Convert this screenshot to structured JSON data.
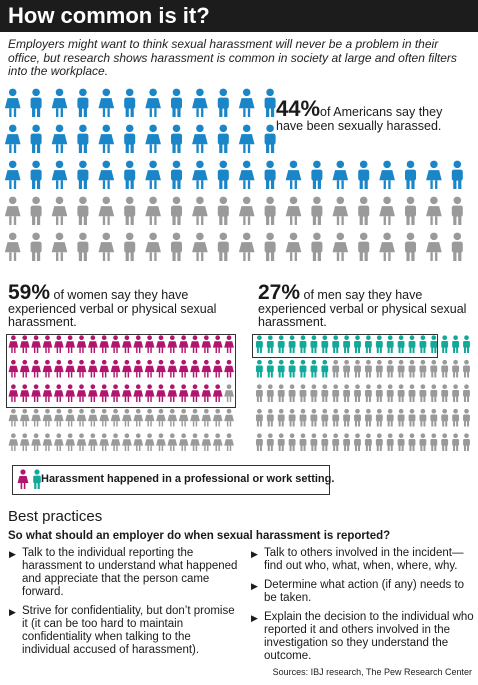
{
  "title": "How common is it?",
  "intro": "Employers might want to think sexual harassment will never be a problem in their office, but research shows harassment is common in society at large and often filters into the workplace.",
  "chart_data": [
    {
      "type": "pictogram",
      "value": 44,
      "total": 100,
      "text": "44% of Americans say they have been sexually harassed.",
      "pct_label": "44%",
      "desc": "of Americans say they have been sexually harassed."
    },
    {
      "type": "pictogram",
      "value": 59,
      "total": 100,
      "work_setting": 38,
      "pct_label": "59%",
      "desc": "of women say they have experienced verbal or physical sexual harassment."
    },
    {
      "type": "pictogram",
      "value": 27,
      "total": 100,
      "work_setting": 16,
      "pct_label": "27%",
      "desc": "of men say they have experienced verbal or physical sexual harassment."
    }
  ],
  "colors": {
    "blue": "#1a86c8",
    "gray": "#9a9a9a",
    "magenta": "#b0166e",
    "teal": "#12a99a"
  },
  "legend": "Harassment happened in a professional or work setting.",
  "best_practices": {
    "title": "Best practices",
    "question": "So what should an employer do when sexual harassment is reported?",
    "left": [
      "Talk to the individual reporting the harassment to understand what happened and appreciate that the person came forward.",
      "Strive for confidentiality, but don’t promise it (it can be too hard to maintain confidentiality when talking to the individual accused of harassment)."
    ],
    "right": [
      "Talk to others involved in the incident—find out who, what, when, where, why.",
      "Determine what action (if any) needs to be taken.",
      "Explain the decision to the individual who reported it and others involved in the investigation so they understand the outcome."
    ]
  },
  "sources": "Sources: IBJ research, The Pew Research Center"
}
